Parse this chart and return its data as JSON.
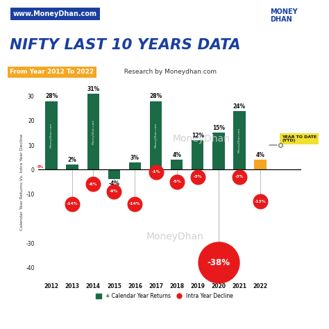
{
  "years": [
    2012,
    2013,
    2014,
    2015,
    2016,
    2017,
    2018,
    2019,
    2020,
    2021,
    2022
  ],
  "calendar_returns": [
    28,
    2,
    31,
    -4,
    3,
    28,
    4,
    12,
    15,
    24,
    4
  ],
  "intra_year_decline": [
    0,
    -14,
    -6,
    -9,
    -14,
    -1,
    -5,
    -3,
    -38,
    -3,
    -13
  ],
  "bar_color_normal": "#1a6b46",
  "bar_color_ytd": "#f5a623",
  "decline_circle_color": "#e8191a",
  "bg_color": "#ffffff",
  "title_color": "#1a3fa0",
  "subtitle_highlight_color": "#f5a623",
  "url_bg_color": "#1a3fa0",
  "ylabel": "Calendar Year Returns Vs. Intra Year Decline",
  "ylim": [
    -45,
    35
  ],
  "title": "NIFTY LAST 10 YEARS DATA",
  "subtitle_highlight": "From Year 2012 To 2022",
  "subtitle_rest": "  Research by Moneydhan.com",
  "url_text": "www.MoneyDhan.com",
  "watermark": "MoneyDhan",
  "ytd_label": "YEAR TO DATE\n(YTD)",
  "legend_labels": [
    "+ Calendar Year Returns",
    "Intra Year Decline"
  ]
}
